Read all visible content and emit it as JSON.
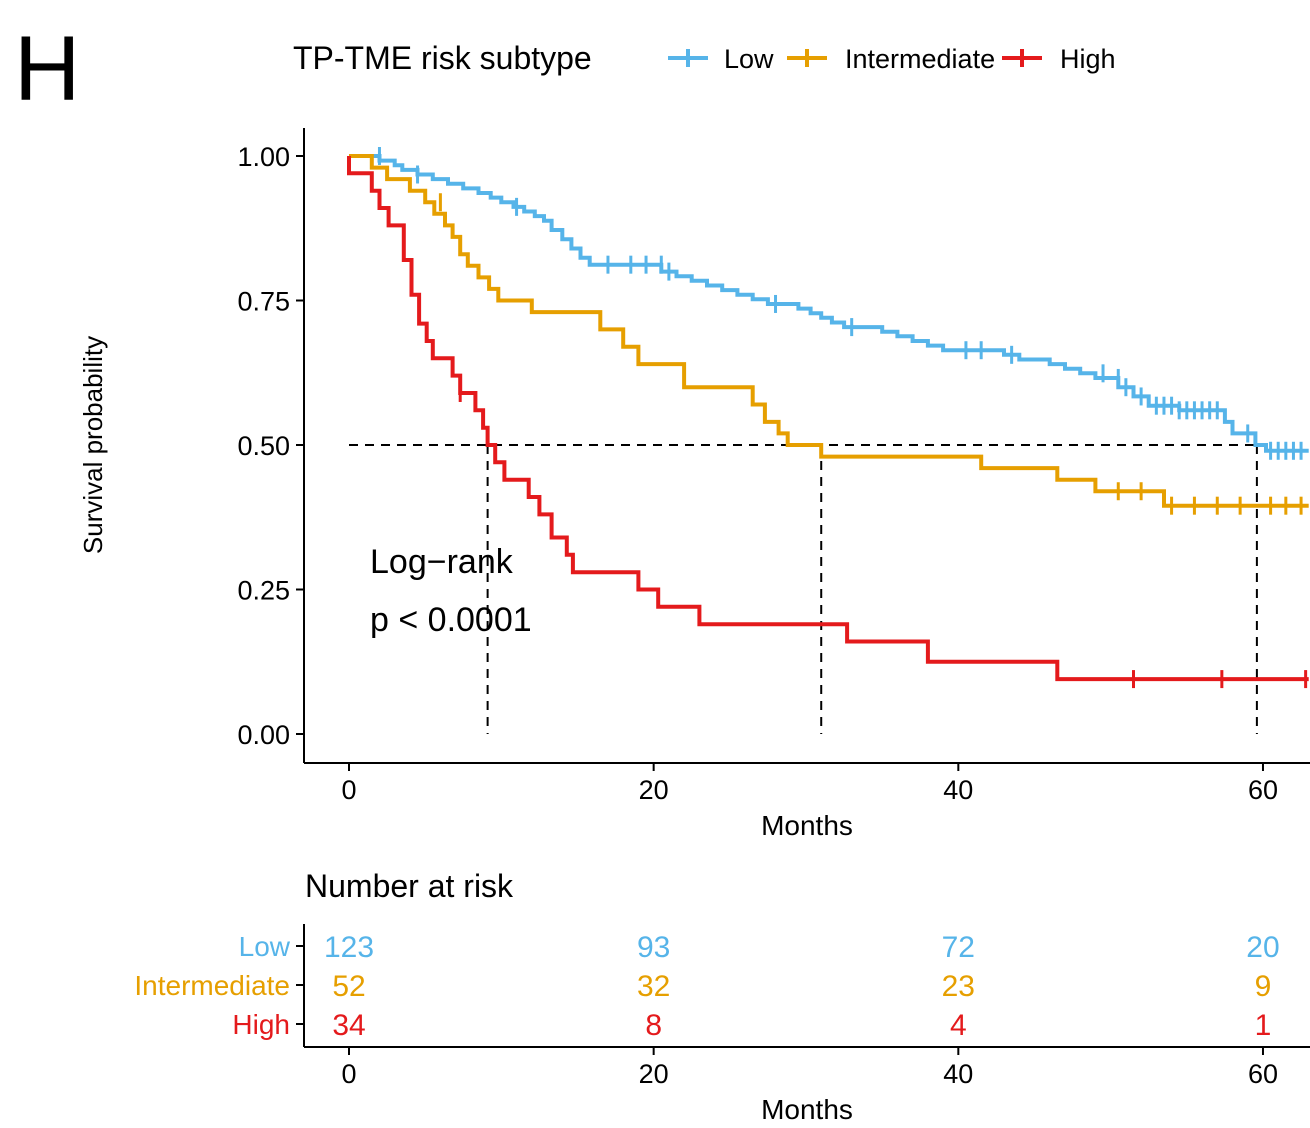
{
  "panel_label": "H",
  "chart_data": {
    "type": "line",
    "subtype": "kaplan-meier",
    "legend": {
      "title": "TP-TME risk subtype",
      "placement": "top",
      "entries": [
        "Low",
        "Intermediate",
        "High"
      ]
    },
    "xlabel": "Months",
    "ylabel": "Survival probability",
    "xlim": [
      -3,
      63
    ],
    "ylim": [
      -0.05,
      1.05
    ],
    "x_ticks": [
      0,
      20,
      40,
      60
    ],
    "x_tick_labels": [
      "0",
      "20",
      "40",
      "60"
    ],
    "y_ticks": [
      0,
      0.25,
      0.5,
      0.75,
      1
    ],
    "y_tick_labels": [
      "0.00",
      "0.25",
      "0.50",
      "0.75",
      "1.00"
    ],
    "grid": false,
    "annotation": [
      "Log−rank",
      "p < 0.0001"
    ],
    "median_reference": {
      "y": 0.5,
      "x_end": 59.6,
      "medians": [
        9.1,
        31.0,
        59.6
      ]
    },
    "series": [
      {
        "name": "Low",
        "color": "#56B4E9",
        "steps": [
          [
            0,
            1
          ],
          [
            2.0,
            1
          ],
          [
            2.0,
            0.992
          ],
          [
            3.0,
            0.992
          ],
          [
            3.0,
            0.984
          ],
          [
            3.5,
            0.984
          ],
          [
            3.5,
            0.976
          ],
          [
            4.5,
            0.976
          ],
          [
            4.5,
            0.968
          ],
          [
            5.5,
            0.968
          ],
          [
            5.5,
            0.96
          ],
          [
            6.5,
            0.96
          ],
          [
            6.5,
            0.952
          ],
          [
            7.5,
            0.952
          ],
          [
            7.5,
            0.944
          ],
          [
            8.5,
            0.944
          ],
          [
            8.5,
            0.936
          ],
          [
            9.3,
            0.936
          ],
          [
            9.3,
            0.928
          ],
          [
            10.0,
            0.928
          ],
          [
            10.0,
            0.92
          ],
          [
            10.8,
            0.92
          ],
          [
            10.8,
            0.912
          ],
          [
            11.5,
            0.912
          ],
          [
            11.5,
            0.904
          ],
          [
            12.2,
            0.904
          ],
          [
            12.2,
            0.896
          ],
          [
            12.8,
            0.896
          ],
          [
            12.8,
            0.888
          ],
          [
            13.3,
            0.888
          ],
          [
            13.3,
            0.872
          ],
          [
            14.0,
            0.872
          ],
          [
            14.0,
            0.856
          ],
          [
            14.6,
            0.856
          ],
          [
            14.6,
            0.84
          ],
          [
            15.2,
            0.84
          ],
          [
            15.2,
            0.824
          ],
          [
            15.8,
            0.824
          ],
          [
            15.8,
            0.812
          ],
          [
            20.5,
            0.812
          ],
          [
            20.5,
            0.8
          ],
          [
            21.5,
            0.8
          ],
          [
            21.5,
            0.792
          ],
          [
            22.5,
            0.792
          ],
          [
            22.5,
            0.784
          ],
          [
            23.5,
            0.784
          ],
          [
            23.5,
            0.776
          ],
          [
            24.5,
            0.776
          ],
          [
            24.5,
            0.768
          ],
          [
            25.5,
            0.768
          ],
          [
            25.5,
            0.76
          ],
          [
            26.5,
            0.76
          ],
          [
            26.5,
            0.752
          ],
          [
            27.5,
            0.752
          ],
          [
            27.5,
            0.744
          ],
          [
            29.5,
            0.744
          ],
          [
            29.5,
            0.736
          ],
          [
            30.3,
            0.736
          ],
          [
            30.3,
            0.728
          ],
          [
            31.0,
            0.728
          ],
          [
            31.0,
            0.72
          ],
          [
            31.7,
            0.72
          ],
          [
            31.7,
            0.712
          ],
          [
            32.5,
            0.712
          ],
          [
            32.5,
            0.704
          ],
          [
            35.0,
            0.704
          ],
          [
            35.0,
            0.696
          ],
          [
            36.0,
            0.696
          ],
          [
            36.0,
            0.688
          ],
          [
            37.0,
            0.688
          ],
          [
            37.0,
            0.68
          ],
          [
            38.0,
            0.68
          ],
          [
            38.0,
            0.672
          ],
          [
            39.0,
            0.672
          ],
          [
            39.0,
            0.664
          ],
          [
            43.0,
            0.664
          ],
          [
            43.0,
            0.656
          ],
          [
            44.0,
            0.656
          ],
          [
            44.0,
            0.648
          ],
          [
            46.0,
            0.648
          ],
          [
            46.0,
            0.64
          ],
          [
            47.0,
            0.64
          ],
          [
            47.0,
            0.632
          ],
          [
            48.0,
            0.632
          ],
          [
            48.0,
            0.624
          ],
          [
            49.0,
            0.624
          ],
          [
            49.0,
            0.616
          ],
          [
            50.5,
            0.616
          ],
          [
            50.5,
            0.6
          ],
          [
            51.5,
            0.6
          ],
          [
            51.5,
            0.584
          ],
          [
            52.5,
            0.584
          ],
          [
            52.5,
            0.568
          ],
          [
            54.5,
            0.568
          ],
          [
            54.5,
            0.56
          ],
          [
            57.5,
            0.56
          ],
          [
            57.5,
            0.54
          ],
          [
            58.0,
            0.54
          ],
          [
            58.0,
            0.52
          ],
          [
            59.5,
            0.52
          ],
          [
            59.5,
            0.5
          ],
          [
            60.2,
            0.5
          ],
          [
            60.2,
            0.49
          ],
          [
            63,
            0.49
          ]
        ],
        "censored": [
          [
            2.0,
            1
          ],
          [
            4.5,
            0.968
          ],
          [
            11.0,
            0.912
          ],
          [
            17.0,
            0.812
          ],
          [
            18.5,
            0.812
          ],
          [
            19.5,
            0.812
          ],
          [
            20.5,
            0.812
          ],
          [
            21.0,
            0.8
          ],
          [
            28.0,
            0.744
          ],
          [
            33.0,
            0.704
          ],
          [
            40.5,
            0.664
          ],
          [
            41.5,
            0.664
          ],
          [
            43.5,
            0.656
          ],
          [
            49.5,
            0.624
          ],
          [
            50.5,
            0.616
          ],
          [
            51.0,
            0.6
          ],
          [
            52.0,
            0.584
          ],
          [
            53.0,
            0.568
          ],
          [
            53.5,
            0.568
          ],
          [
            54.0,
            0.568
          ],
          [
            54.5,
            0.56
          ],
          [
            55.0,
            0.56
          ],
          [
            55.5,
            0.56
          ],
          [
            56.0,
            0.56
          ],
          [
            56.5,
            0.56
          ],
          [
            57.0,
            0.56
          ],
          [
            59.0,
            0.52
          ],
          [
            60.5,
            0.49
          ],
          [
            61.0,
            0.49
          ],
          [
            61.5,
            0.49
          ],
          [
            62.0,
            0.49
          ],
          [
            62.5,
            0.49
          ]
        ]
      },
      {
        "name": "Intermediate",
        "color": "#E69F00",
        "steps": [
          [
            0,
            1
          ],
          [
            1.5,
            1
          ],
          [
            1.5,
            0.98
          ],
          [
            2.5,
            0.98
          ],
          [
            2.5,
            0.96
          ],
          [
            4.0,
            0.96
          ],
          [
            4.0,
            0.94
          ],
          [
            5.0,
            0.94
          ],
          [
            5.0,
            0.92
          ],
          [
            5.6,
            0.92
          ],
          [
            5.6,
            0.9
          ],
          [
            6.3,
            0.9
          ],
          [
            6.3,
            0.88
          ],
          [
            6.8,
            0.88
          ],
          [
            6.8,
            0.86
          ],
          [
            7.3,
            0.86
          ],
          [
            7.3,
            0.83
          ],
          [
            7.8,
            0.83
          ],
          [
            7.8,
            0.81
          ],
          [
            8.5,
            0.81
          ],
          [
            8.5,
            0.79
          ],
          [
            9.2,
            0.79
          ],
          [
            9.2,
            0.77
          ],
          [
            9.8,
            0.77
          ],
          [
            9.8,
            0.75
          ],
          [
            12.0,
            0.75
          ],
          [
            12.0,
            0.73
          ],
          [
            16.5,
            0.73
          ],
          [
            16.5,
            0.7
          ],
          [
            18.0,
            0.7
          ],
          [
            18.0,
            0.67
          ],
          [
            19.0,
            0.67
          ],
          [
            19.0,
            0.64
          ],
          [
            22.0,
            0.64
          ],
          [
            22.0,
            0.6
          ],
          [
            26.5,
            0.6
          ],
          [
            26.5,
            0.57
          ],
          [
            27.3,
            0.57
          ],
          [
            27.3,
            0.54
          ],
          [
            28.2,
            0.54
          ],
          [
            28.2,
            0.52
          ],
          [
            28.8,
            0.52
          ],
          [
            28.8,
            0.5
          ],
          [
            31.0,
            0.5
          ],
          [
            31.0,
            0.48
          ],
          [
            41.5,
            0.48
          ],
          [
            41.5,
            0.46
          ],
          [
            46.5,
            0.46
          ],
          [
            46.5,
            0.44
          ],
          [
            49.0,
            0.44
          ],
          [
            49.0,
            0.42
          ],
          [
            53.5,
            0.42
          ],
          [
            53.5,
            0.395
          ],
          [
            63,
            0.395
          ]
        ],
        "censored": [
          [
            6.0,
            0.92
          ],
          [
            50.5,
            0.42
          ],
          [
            52.0,
            0.42
          ],
          [
            54.0,
            0.395
          ],
          [
            55.5,
            0.395
          ],
          [
            57.0,
            0.395
          ],
          [
            58.5,
            0.395
          ],
          [
            60.5,
            0.395
          ],
          [
            61.5,
            0.395
          ],
          [
            62.5,
            0.395
          ]
        ]
      },
      {
        "name": "High",
        "color": "#E41A1C",
        "steps": [
          [
            0,
            1
          ],
          [
            0,
            0.97
          ],
          [
            1.5,
            0.97
          ],
          [
            1.5,
            0.94
          ],
          [
            2.0,
            0.94
          ],
          [
            2.0,
            0.91
          ],
          [
            2.6,
            0.91
          ],
          [
            2.6,
            0.88
          ],
          [
            3.6,
            0.88
          ],
          [
            3.6,
            0.82
          ],
          [
            4.1,
            0.82
          ],
          [
            4.1,
            0.76
          ],
          [
            4.6,
            0.76
          ],
          [
            4.6,
            0.71
          ],
          [
            5.1,
            0.71
          ],
          [
            5.1,
            0.68
          ],
          [
            5.5,
            0.68
          ],
          [
            5.5,
            0.65
          ],
          [
            6.8,
            0.65
          ],
          [
            6.8,
            0.62
          ],
          [
            7.3,
            0.62
          ],
          [
            7.3,
            0.59
          ],
          [
            8.3,
            0.59
          ],
          [
            8.3,
            0.56
          ],
          [
            8.8,
            0.56
          ],
          [
            8.8,
            0.53
          ],
          [
            9.1,
            0.53
          ],
          [
            9.1,
            0.5
          ],
          [
            9.6,
            0.5
          ],
          [
            9.6,
            0.47
          ],
          [
            10.2,
            0.47
          ],
          [
            10.2,
            0.44
          ],
          [
            11.8,
            0.44
          ],
          [
            11.8,
            0.41
          ],
          [
            12.5,
            0.41
          ],
          [
            12.5,
            0.38
          ],
          [
            13.3,
            0.38
          ],
          [
            13.3,
            0.34
          ],
          [
            14.3,
            0.34
          ],
          [
            14.3,
            0.31
          ],
          [
            14.7,
            0.31
          ],
          [
            14.7,
            0.28
          ],
          [
            19.0,
            0.28
          ],
          [
            19.0,
            0.25
          ],
          [
            20.3,
            0.25
          ],
          [
            20.3,
            0.22
          ],
          [
            23.0,
            0.22
          ],
          [
            23.0,
            0.19
          ],
          [
            32.7,
            0.19
          ],
          [
            32.7,
            0.16
          ],
          [
            38.0,
            0.16
          ],
          [
            38.0,
            0.125
          ],
          [
            46.5,
            0.125
          ],
          [
            46.5,
            0.095
          ],
          [
            63,
            0.095
          ]
        ],
        "censored": [
          [
            7.3,
            0.59
          ],
          [
            51.5,
            0.095
          ],
          [
            57.3,
            0.095
          ],
          [
            62.8,
            0.095
          ]
        ]
      }
    ]
  },
  "risk_table": {
    "title": "Number at risk",
    "xlabel": "Months",
    "x_ticks": [
      0,
      20,
      40,
      60
    ],
    "x_tick_labels": [
      "0",
      "20",
      "40",
      "60"
    ],
    "rows": [
      {
        "group": "Low",
        "color": "#56B4E9",
        "counts": [
          "123",
          "93",
          "72",
          "20"
        ]
      },
      {
        "group": "Intermediate",
        "color": "#E69F00",
        "counts": [
          "52",
          "32",
          "23",
          "9"
        ]
      },
      {
        "group": "High",
        "color": "#E41A1C",
        "counts": [
          "34",
          "8",
          "4",
          "1"
        ]
      }
    ]
  }
}
